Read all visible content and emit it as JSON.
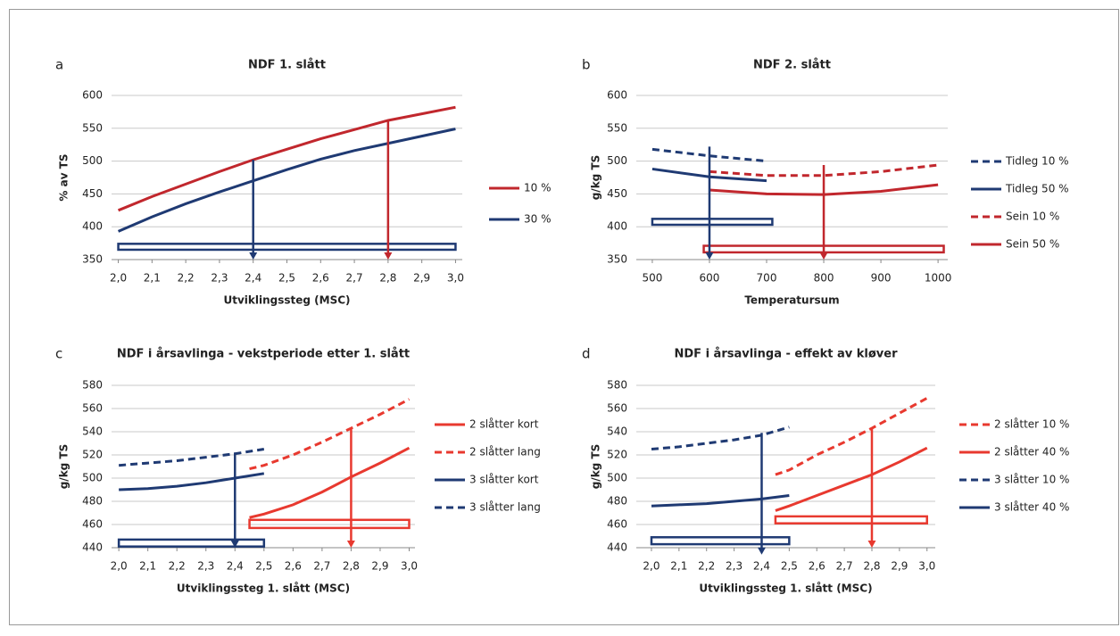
{
  "chart_data": [
    {
      "type": "line",
      "label": "a",
      "title": "NDF 1. slått",
      "x_label": "Utviklingssteg (MSC)",
      "y_label": "% av TS",
      "xlim": [
        1.98,
        3.02
      ],
      "ylim": [
        350,
        600
      ],
      "yticks": [
        350,
        400,
        450,
        500,
        550,
        600
      ],
      "xticks": [
        {
          "value": 2.0,
          "label": "2,0"
        },
        {
          "value": 2.1,
          "label": "2,1"
        },
        {
          "value": 2.2,
          "label": "2,2"
        },
        {
          "value": 2.3,
          "label": "2,3"
        },
        {
          "value": 2.4,
          "label": "2,4"
        },
        {
          "value": 2.5,
          "label": "2,5"
        },
        {
          "value": 2.6,
          "label": "2,6"
        },
        {
          "value": 2.7,
          "label": "2,7"
        },
        {
          "value": 2.8,
          "label": "2,8"
        },
        {
          "value": 2.9,
          "label": "2,9"
        },
        {
          "value": 3.0,
          "label": "3,0"
        }
      ],
      "grid": true,
      "series": [
        {
          "name": "10 %",
          "color": "#c1272d",
          "dashed": false,
          "x": [
            2.0,
            2.1,
            2.2,
            2.3,
            2.4,
            2.5,
            2.6,
            2.7,
            2.8,
            2.9,
            3.0
          ],
          "values": [
            425,
            446,
            465,
            484,
            502,
            518,
            534,
            548,
            562,
            572,
            582
          ]
        },
        {
          "name": "30 %",
          "color": "#1f3a73",
          "dashed": false,
          "x": [
            2.0,
            2.1,
            2.2,
            2.3,
            2.4,
            2.5,
            2.6,
            2.7,
            2.8,
            2.9,
            3.0
          ],
          "values": [
            393,
            415,
            435,
            453,
            470,
            487,
            503,
            516,
            527,
            538,
            549
          ]
        }
      ],
      "arrows": [
        {
          "x": 2.4,
          "from": 502,
          "to": 350,
          "color": "#1f3a73"
        },
        {
          "x": 2.8,
          "from": 562,
          "to": 350,
          "color": "#c1272d"
        }
      ],
      "boxes": [
        {
          "x": [
            2.0,
            3.0
          ],
          "y": [
            365,
            374
          ],
          "color": "#1f3a73"
        }
      ]
    },
    {
      "type": "line",
      "label": "b",
      "title": "NDF 2. slått",
      "x_label": "Temperatursum",
      "y_label": "g/kg TS",
      "xlim": [
        472,
        1017
      ],
      "ylim": [
        350,
        600
      ],
      "yticks": [
        350,
        400,
        450,
        500,
        550,
        600
      ],
      "xticks": [
        500,
        600,
        700,
        800,
        900,
        1000
      ],
      "grid": true,
      "series": [
        {
          "name": "Tidleg 10 %",
          "color": "#1f3a73",
          "dashed": true,
          "x": [
            500,
            600,
            700
          ],
          "values": [
            518,
            508,
            500
          ]
        },
        {
          "name": "Tidleg 50 %",
          "color": "#1f3a73",
          "dashed": false,
          "x": [
            500,
            600,
            700
          ],
          "values": [
            488,
            476,
            470
          ]
        },
        {
          "name": "Sein 10 %",
          "color": "#c1272d",
          "dashed": true,
          "x": [
            600,
            700,
            800,
            900,
            1000
          ],
          "values": [
            484,
            478,
            478,
            484,
            494
          ]
        },
        {
          "name": "Sein 50 %",
          "color": "#c1272d",
          "dashed": false,
          "x": [
            600,
            700,
            800,
            900,
            1000
          ],
          "values": [
            456,
            450,
            449,
            454,
            464
          ]
        }
      ],
      "arrows": [
        {
          "x": 600,
          "from": 522,
          "to": 350,
          "color": "#1f3a73"
        },
        {
          "x": 800,
          "from": 494,
          "to": 350,
          "color": "#c1272d"
        }
      ],
      "boxes": [
        {
          "x": [
            500,
            710
          ],
          "y": [
            403,
            412
          ],
          "color": "#1f3a73"
        },
        {
          "x": [
            590,
            1010
          ],
          "y": [
            361,
            371
          ],
          "color": "#c1272d"
        }
      ]
    },
    {
      "type": "line",
      "label": "c",
      "title": "NDF i årsavlinga - vekstperiode etter 1. slått",
      "x_label": "Utviklingssteg 1. slått (MSC)",
      "y_label": "g/kg TS",
      "xlim": [
        1.975,
        3.02
      ],
      "ylim": [
        440,
        580
      ],
      "yticks": [
        440,
        460,
        480,
        500,
        520,
        540,
        560,
        580
      ],
      "xticks": [
        {
          "value": 2.0,
          "label": "2,0"
        },
        {
          "value": 2.1,
          "label": "2,1"
        },
        {
          "value": 2.2,
          "label": "2,2"
        },
        {
          "value": 2.3,
          "label": "2,3"
        },
        {
          "value": 2.4,
          "label": "2,4"
        },
        {
          "value": 2.5,
          "label": "2,5"
        },
        {
          "value": 2.6,
          "label": "2,6"
        },
        {
          "value": 2.7,
          "label": "2,7"
        },
        {
          "value": 2.8,
          "label": "2,8"
        },
        {
          "value": 2.9,
          "label": "2,9"
        },
        {
          "value": 3.0,
          "label": "3,0"
        }
      ],
      "grid": true,
      "series": [
        {
          "name": "2 slåtter kort",
          "color": "#e8392f",
          "dashed": false,
          "x": [
            2.45,
            2.5,
            2.6,
            2.7,
            2.8,
            2.9,
            3.0
          ],
          "values": [
            466,
            469,
            477,
            488,
            501,
            513,
            526
          ]
        },
        {
          "name": "2 slåtter lang",
          "color": "#e8392f",
          "dashed": true,
          "x": [
            2.45,
            2.5,
            2.6,
            2.7,
            2.8,
            2.9,
            3.0
          ],
          "values": [
            508,
            511,
            520,
            531,
            543,
            555,
            568
          ]
        },
        {
          "name": "3 slåtter kort",
          "color": "#1f3a73",
          "dashed": false,
          "x": [
            2.0,
            2.1,
            2.2,
            2.3,
            2.4,
            2.5
          ],
          "values": [
            490,
            491,
            493,
            496,
            500,
            504
          ]
        },
        {
          "name": "3 slåtter lang",
          "color": "#1f3a73",
          "dashed": true,
          "x": [
            2.0,
            2.1,
            2.2,
            2.3,
            2.4,
            2.5
          ],
          "values": [
            511,
            513,
            515,
            518,
            521,
            525
          ]
        }
      ],
      "arrows": [
        {
          "x": 2.4,
          "from": 522,
          "to": 440,
          "color": "#1f3a73"
        },
        {
          "x": 2.8,
          "from": 543,
          "to": 440,
          "color": "#e8392f"
        }
      ],
      "boxes": [
        {
          "x": [
            2.0,
            2.5
          ],
          "y": [
            441,
            447
          ],
          "color": "#1f3a73"
        },
        {
          "x": [
            2.45,
            3.0
          ],
          "y": [
            457,
            464
          ],
          "color": "#e8392f"
        }
      ]
    },
    {
      "type": "line",
      "label": "d",
      "title": "NDF i årsavlinga - effekt av kløver",
      "x_label": "Utviklingssteg 1. slått (MSC)",
      "y_label": "g/kg TS",
      "xlim": [
        1.945,
        3.03
      ],
      "ylim": [
        440,
        580
      ],
      "yticks": [
        440,
        460,
        480,
        500,
        520,
        540,
        560,
        580
      ],
      "xticks": [
        {
          "value": 2.0,
          "label": "2,0"
        },
        {
          "value": 2.1,
          "label": "2,1"
        },
        {
          "value": 2.2,
          "label": "2,2"
        },
        {
          "value": 2.3,
          "label": "2,3"
        },
        {
          "value": 2.4,
          "label": "2,4"
        },
        {
          "value": 2.5,
          "label": "2,5"
        },
        {
          "value": 2.6,
          "label": "2,6"
        },
        {
          "value": 2.7,
          "label": "2,7"
        },
        {
          "value": 2.8,
          "label": "2,8"
        },
        {
          "value": 2.9,
          "label": "2,9"
        },
        {
          "value": 3.0,
          "label": "3,0"
        }
      ],
      "grid": true,
      "series": [
        {
          "name": "2 slåtter 10 %",
          "color": "#e8392f",
          "dashed": true,
          "x": [
            2.45,
            2.5,
            2.6,
            2.7,
            2.8,
            2.9,
            3.0
          ],
          "values": [
            503,
            507,
            520,
            531,
            543,
            556,
            569
          ]
        },
        {
          "name": "2 slåtter 40 %",
          "color": "#e8392f",
          "dashed": false,
          "x": [
            2.45,
            2.5,
            2.6,
            2.7,
            2.8,
            2.9,
            3.0
          ],
          "values": [
            472,
            476,
            485,
            494,
            503,
            514,
            526
          ]
        },
        {
          "name": "3 slåtter 10 %",
          "color": "#1f3a73",
          "dashed": true,
          "x": [
            2.0,
            2.1,
            2.2,
            2.3,
            2.4,
            2.5
          ],
          "values": [
            525,
            527,
            530,
            533,
            537,
            544
          ]
        },
        {
          "name": "3 slåtter 40 %",
          "color": "#1f3a73",
          "dashed": false,
          "x": [
            2.0,
            2.1,
            2.2,
            2.3,
            2.4,
            2.5
          ],
          "values": [
            476,
            477,
            478,
            480,
            482,
            485
          ]
        }
      ],
      "arrows": [
        {
          "x": 2.4,
          "from": 539,
          "to": 434,
          "color": "#1f3a73"
        },
        {
          "x": 2.8,
          "from": 543,
          "to": 440,
          "color": "#e8392f"
        }
      ],
      "boxes": [
        {
          "x": [
            2.0,
            2.5
          ],
          "y": [
            443,
            449
          ],
          "color": "#1f3a73"
        },
        {
          "x": [
            2.45,
            3.0
          ],
          "y": [
            461,
            467
          ],
          "color": "#e8392f"
        }
      ]
    }
  ]
}
